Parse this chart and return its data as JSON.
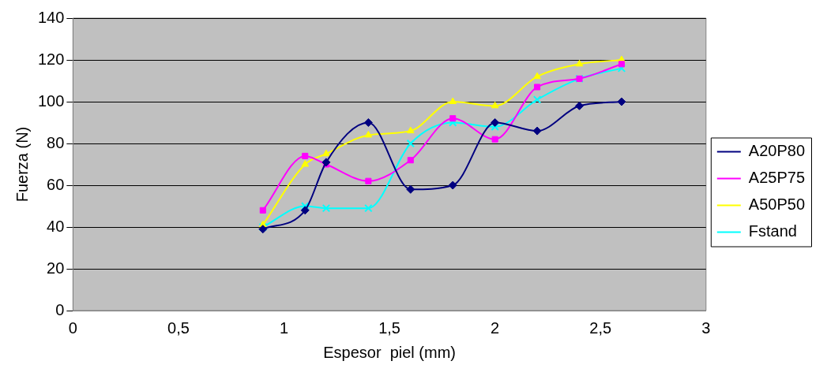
{
  "chart_data": {
    "type": "line",
    "xlabel": "Espesor  piel (mm)",
    "ylabel": "Fuerza (N)",
    "x": [
      0.9,
      1.1,
      1.2,
      1.4,
      1.6,
      1.8,
      2.0,
      2.2,
      2.4,
      2.6
    ],
    "series": [
      {
        "name": "A20P80",
        "color": "#000080",
        "marker": "diamond",
        "values": [
          39,
          48,
          71,
          90,
          58,
          60,
          90,
          86,
          98,
          100
        ]
      },
      {
        "name": "A25P75",
        "color": "#ff00ff",
        "marker": "square",
        "values": [
          48,
          74,
          70,
          62,
          72,
          92,
          82,
          107,
          111,
          118
        ]
      },
      {
        "name": "A50P50",
        "color": "#ffff00",
        "marker": "triangle",
        "values": [
          41,
          70,
          75,
          84,
          86,
          100,
          98,
          112,
          118,
          120
        ]
      },
      {
        "name": "Fstand",
        "color": "#00ffff",
        "marker": "cross",
        "values": [
          40,
          50,
          49,
          49,
          80,
          90,
          88,
          101,
          111,
          116
        ]
      }
    ],
    "xlim": [
      0,
      3
    ],
    "xticks": [
      0,
      {
        "value": 0.5,
        "label": "0,5"
      },
      1,
      {
        "value": 1.5,
        "label": "1,5"
      },
      2,
      {
        "value": 2.5,
        "label": "2,5"
      },
      3
    ],
    "ylim": [
      0,
      140
    ],
    "yticks": [
      0,
      20,
      40,
      60,
      80,
      100,
      120,
      140
    ],
    "grid": "y",
    "legend": "right",
    "line_style": "solid"
  }
}
